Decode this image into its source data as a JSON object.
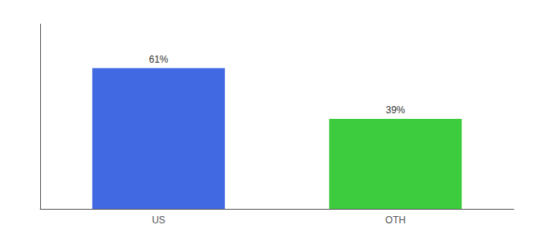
{
  "chart_data": {
    "type": "bar",
    "categories": [
      "US",
      "OTH"
    ],
    "values": [
      61,
      39
    ],
    "value_labels": [
      "61%",
      "39%"
    ],
    "colors": [
      "#4169e1",
      "#3dcc3d"
    ],
    "ylim": [
      0,
      80
    ],
    "grid": false,
    "data_labels": true,
    "tick_labels": "x"
  }
}
